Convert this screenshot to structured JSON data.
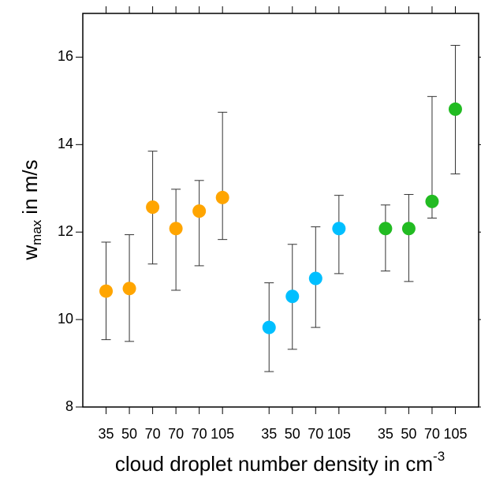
{
  "chart_data": {
    "type": "scatter",
    "xlabel": {
      "text": "cloud droplet number density in cm",
      "sup": "-3"
    },
    "ylabel": {
      "main": "w",
      "sub": "max",
      "rest": "in m/s"
    },
    "xlim": [
      0,
      17
    ],
    "xticks": [
      {
        "value": 1,
        "label": "35"
      },
      {
        "value": 2,
        "label": "50"
      },
      {
        "value": 3,
        "label": "70"
      },
      {
        "value": 4,
        "label": "70"
      },
      {
        "value": 5,
        "label": "70"
      },
      {
        "value": 6,
        "label": "105"
      },
      {
        "value": 8,
        "label": "35"
      },
      {
        "value": 9,
        "label": "50"
      },
      {
        "value": 10,
        "label": "70"
      },
      {
        "value": 11,
        "label": "105"
      },
      {
        "value": 13,
        "label": "35"
      },
      {
        "value": 14,
        "label": "50"
      },
      {
        "value": 15,
        "label": "70"
      },
      {
        "value": 16,
        "label": "105"
      }
    ],
    "ylim": [
      8,
      17
    ],
    "yticks": [
      8,
      10,
      12,
      14,
      16
    ],
    "series": [
      {
        "color": "#ffa500",
        "x": [
          1,
          2,
          3,
          4,
          5,
          6
        ],
        "values": [
          10.65,
          10.71,
          12.57,
          12.08,
          12.48,
          12.79
        ],
        "low": [
          9.54,
          9.5,
          11.27,
          10.67,
          11.23,
          11.83
        ],
        "high": [
          11.77,
          11.94,
          13.85,
          12.98,
          13.18,
          14.74
        ]
      },
      {
        "color": "#00bfff",
        "x": [
          8,
          9,
          10,
          11
        ],
        "values": [
          9.82,
          10.53,
          10.94,
          12.08
        ],
        "low": [
          8.81,
          9.32,
          9.82,
          11.05
        ],
        "high": [
          10.84,
          11.72,
          12.12,
          12.84
        ]
      },
      {
        "color": "#22bb22",
        "x": [
          13,
          14,
          15,
          16
        ],
        "values": [
          12.08,
          12.08,
          12.7,
          14.81
        ],
        "low": [
          11.11,
          10.87,
          12.32,
          13.33
        ],
        "high": [
          12.62,
          12.86,
          15.1,
          16.27
        ]
      }
    ]
  }
}
